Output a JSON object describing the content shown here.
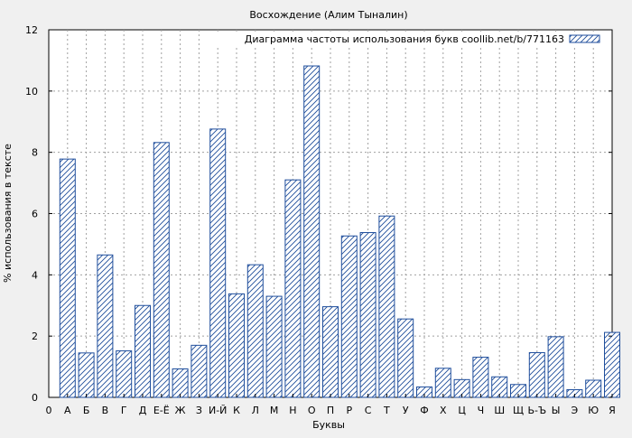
{
  "chart_data": {
    "type": "bar",
    "title": "Восхождение (Алим Тыналин)",
    "xlabel": "Буквы",
    "ylabel": "% использования в тексте",
    "legend": "Диаграмма частоты использования букв coollib.net/b/771163",
    "legend_position": "top-right",
    "grid": true,
    "ylim": [
      0,
      12
    ],
    "yticks": [
      0,
      2,
      4,
      6,
      8,
      10,
      12
    ],
    "xticks": [
      "0",
      "А",
      "Б",
      "В",
      "Г",
      "Д",
      "Е-Ё",
      "Ж",
      "З",
      "И-Й",
      "К",
      "Л",
      "М",
      "Н",
      "О",
      "П",
      "Р",
      "С",
      "Т",
      "У",
      "Ф",
      "Х",
      "Ц",
      "Ч",
      "Ш",
      "Щ",
      "Ь-Ъ",
      "Ы",
      "Э",
      "Ю",
      "Я"
    ],
    "categories": [
      "А",
      "Б",
      "В",
      "Г",
      "Д",
      "Е-Ё",
      "Ж",
      "З",
      "И-Й",
      "К",
      "Л",
      "М",
      "Н",
      "О",
      "П",
      "Р",
      "С",
      "Т",
      "У",
      "Ф",
      "Х",
      "Ц",
      "Ч",
      "Ш",
      "Щ",
      "Ь-Ъ",
      "Ы",
      "Э",
      "Ю",
      "Я"
    ],
    "values": [
      7.78,
      1.45,
      4.65,
      1.52,
      3.0,
      8.32,
      0.93,
      1.7,
      8.76,
      3.38,
      4.33,
      3.3,
      7.1,
      10.82,
      2.96,
      5.27,
      5.38,
      5.92,
      2.56,
      0.34,
      0.95,
      0.58,
      1.31,
      0.67,
      0.42,
      1.46,
      1.98,
      0.25,
      0.56,
      2.12
    ],
    "colors": {
      "bar_stroke": "#1f4e9c",
      "hatch": "#1f4e9c",
      "plot_bg": "#ffffff",
      "page_bg": "#f0f0f0",
      "grid": "#a0a0a0"
    }
  }
}
